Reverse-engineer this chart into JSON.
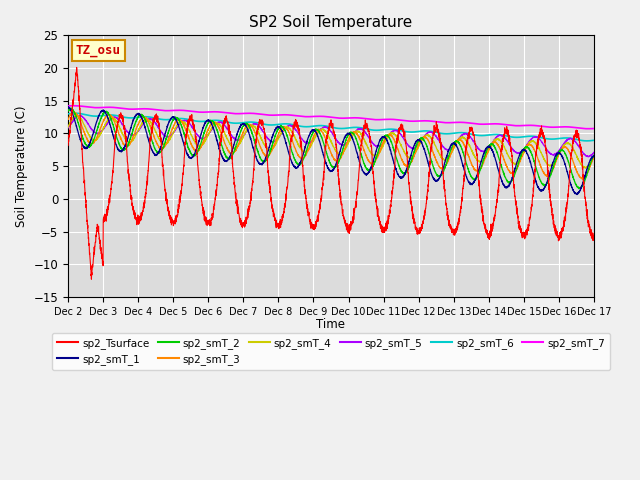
{
  "title": "SP2 Soil Temperature",
  "ylabel": "Soil Temperature (C)",
  "xlabel": "Time",
  "ylim": [
    -15,
    25
  ],
  "xlim": [
    0,
    360
  ],
  "tz_label": "TZ_osu",
  "bg_color": "#dcdcdc",
  "fig_color": "#f0f0f0",
  "series_colors": {
    "sp2_Tsurface": "#ff0000",
    "sp2_smT_1": "#00008b",
    "sp2_smT_2": "#00cc00",
    "sp2_smT_3": "#ff8800",
    "sp2_smT_4": "#cccc00",
    "sp2_smT_5": "#aa00ff",
    "sp2_smT_6": "#00cccc",
    "sp2_smT_7": "#ff00ff"
  },
  "xtick_labels": [
    "Dec 2",
    "Dec 3",
    "Dec 4",
    "Dec 5",
    "Dec 6",
    "Dec 7",
    "Dec 8",
    "Dec 9",
    "Dec 10",
    "Dec 11",
    "Dec 12",
    "Dec 13",
    "Dec 14",
    "Dec 15",
    "Dec 16",
    "Dec 17"
  ],
  "xtick_positions": [
    0,
    24,
    48,
    72,
    96,
    120,
    144,
    168,
    192,
    216,
    240,
    264,
    288,
    312,
    336,
    360
  ],
  "yticks": [
    -15,
    -10,
    -5,
    0,
    5,
    10,
    15,
    20,
    25
  ]
}
